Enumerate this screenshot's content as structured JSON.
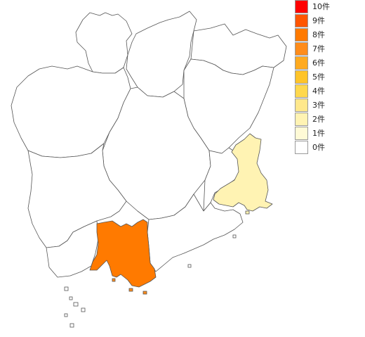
{
  "legend": [
    {
      "label": "10件",
      "color": "#ff0000"
    },
    {
      "label": "9件",
      "color": "#ff5500"
    },
    {
      "label": "8件",
      "color": "#ff7a00"
    },
    {
      "label": "7件",
      "color": "#ff8c1a"
    },
    {
      "label": "6件",
      "color": "#ffaa1f"
    },
    {
      "label": "5件",
      "color": "#ffc429"
    },
    {
      "label": "4件",
      "color": "#ffd84d"
    },
    {
      "label": "3件",
      "color": "#ffe88c"
    },
    {
      "label": "2件",
      "color": "#fff3b3"
    },
    {
      "label": "1件",
      "color": "#fffad6"
    },
    {
      "label": "0件",
      "color": "#ffffff"
    }
  ],
  "regions": [
    {
      "id": "north-west",
      "count": 0
    },
    {
      "id": "north-central",
      "count": 0
    },
    {
      "id": "north-east-upper",
      "count": 0
    },
    {
      "id": "north-east",
      "count": 0
    },
    {
      "id": "west-upper",
      "count": 0
    },
    {
      "id": "west-lower",
      "count": 0
    },
    {
      "id": "central",
      "count": 0
    },
    {
      "id": "central-east",
      "count": 0
    },
    {
      "id": "east-highlight",
      "count": 2
    },
    {
      "id": "south-west",
      "count": 0
    },
    {
      "id": "south-highlight",
      "count": 8
    },
    {
      "id": "south-east",
      "count": 0
    }
  ]
}
